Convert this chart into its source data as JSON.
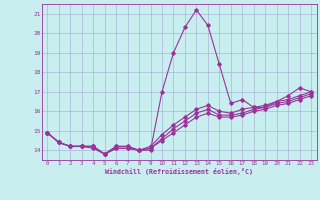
{
  "xlabel": "Windchill (Refroidissement éolien,°C)",
  "background_color": "#c8eef0",
  "line_color": "#993399",
  "grid_color": "#9999cc",
  "spine_color": "#993399",
  "xlim": [
    -0.5,
    23.5
  ],
  "ylim": [
    13.5,
    21.5
  ],
  "yticks": [
    14,
    15,
    16,
    17,
    18,
    19,
    20,
    21
  ],
  "xticks": [
    0,
    1,
    2,
    3,
    4,
    5,
    6,
    7,
    8,
    9,
    10,
    11,
    12,
    13,
    14,
    15,
    16,
    17,
    18,
    19,
    20,
    21,
    22,
    23
  ],
  "series1_y": [
    14.9,
    14.4,
    14.2,
    14.2,
    14.2,
    13.8,
    14.2,
    14.2,
    14.0,
    14.0,
    17.0,
    19.0,
    20.3,
    21.2,
    20.4,
    18.4,
    16.4,
    16.6,
    16.2,
    16.2,
    16.5,
    16.8,
    17.2,
    17.0
  ],
  "series2_y": [
    14.9,
    14.4,
    14.2,
    14.2,
    14.2,
    13.8,
    14.2,
    14.2,
    14.0,
    14.2,
    14.8,
    15.3,
    15.7,
    16.1,
    16.3,
    16.0,
    15.9,
    16.1,
    16.2,
    16.3,
    16.5,
    16.6,
    16.8,
    17.0
  ],
  "series3_y": [
    14.9,
    14.4,
    14.2,
    14.2,
    14.2,
    13.8,
    14.1,
    14.1,
    14.0,
    14.1,
    14.6,
    15.1,
    15.5,
    15.9,
    16.1,
    15.8,
    15.8,
    15.9,
    16.1,
    16.2,
    16.4,
    16.5,
    16.7,
    16.9
  ],
  "series4_y": [
    14.9,
    14.4,
    14.2,
    14.2,
    14.1,
    13.8,
    14.1,
    14.1,
    14.0,
    14.1,
    14.5,
    14.9,
    15.3,
    15.7,
    15.9,
    15.7,
    15.7,
    15.8,
    16.0,
    16.1,
    16.3,
    16.4,
    16.6,
    16.8
  ]
}
